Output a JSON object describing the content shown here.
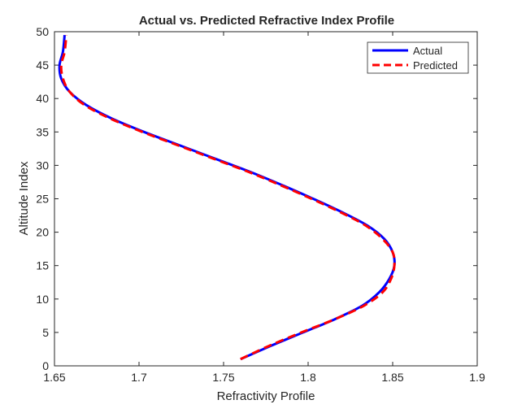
{
  "chart_data": {
    "type": "line",
    "title": "Actual vs. Predicted Refractive Index Profile",
    "xlabel": "Refractivity Profile",
    "ylabel": "Altitude Index",
    "xlim": [
      1.65,
      1.9
    ],
    "ylim": [
      0,
      50
    ],
    "xticks": [
      "1.65",
      "1.7",
      "1.75",
      "1.8",
      "1.85",
      "1.9"
    ],
    "yticks": [
      "0",
      "5",
      "10",
      "15",
      "20",
      "25",
      "30",
      "35",
      "40",
      "45",
      "50"
    ],
    "grid": false,
    "legend_position": "top-right",
    "series": [
      {
        "name": "Actual",
        "color": "#0000ff",
        "style": "solid",
        "x": [
          1.76,
          1.778,
          1.797,
          1.816,
          1.832,
          1.842,
          1.848,
          1.851,
          1.85,
          1.845,
          1.835,
          1.82,
          1.803,
          1.785,
          1.766,
          1.745,
          1.724,
          1.703,
          1.684,
          1.669,
          1.659,
          1.654,
          1.653,
          1.655,
          1.656
        ],
        "y": [
          1,
          3,
          5,
          7,
          9,
          11,
          13,
          15,
          17,
          19,
          21,
          23,
          25,
          27,
          29,
          31,
          33,
          35,
          37,
          39,
          41,
          43,
          45,
          47,
          49.5
        ]
      },
      {
        "name": "Predicted",
        "color": "#ff0000",
        "style": "dashed",
        "x": [
          1.76,
          1.777,
          1.796,
          1.816,
          1.833,
          1.844,
          1.849,
          1.851,
          1.85,
          1.844,
          1.834,
          1.819,
          1.802,
          1.784,
          1.765,
          1.744,
          1.723,
          1.702,
          1.683,
          1.668,
          1.659,
          1.655,
          1.654,
          1.656,
          1.657
        ],
        "y": [
          1,
          3,
          5,
          7,
          9,
          11,
          13,
          15,
          17,
          19,
          21,
          23,
          25,
          27,
          29,
          31,
          33,
          35,
          37,
          39,
          41,
          43,
          45,
          47,
          49.5
        ]
      }
    ]
  }
}
